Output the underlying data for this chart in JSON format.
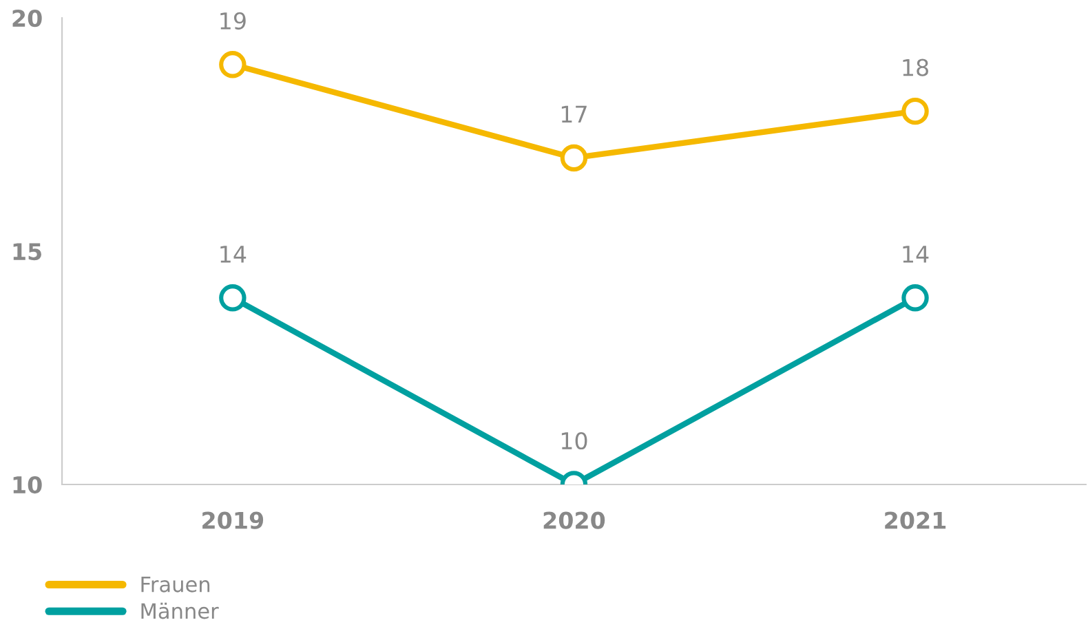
{
  "chart_data": {
    "type": "line",
    "categories": [
      "2019",
      "2020",
      "2021"
    ],
    "series": [
      {
        "name": "Frauen",
        "color": "#f5b800",
        "values": [
          19,
          17,
          18
        ]
      },
      {
        "name": "Männer",
        "color": "#00a0a0",
        "values": [
          14,
          10,
          14
        ]
      }
    ],
    "ylim": [
      10,
      20
    ],
    "yticks": [
      10,
      15,
      20
    ],
    "grid": false,
    "legend": "bottom left",
    "marker": "circle",
    "line_style": "solid",
    "data_labels": true
  }
}
